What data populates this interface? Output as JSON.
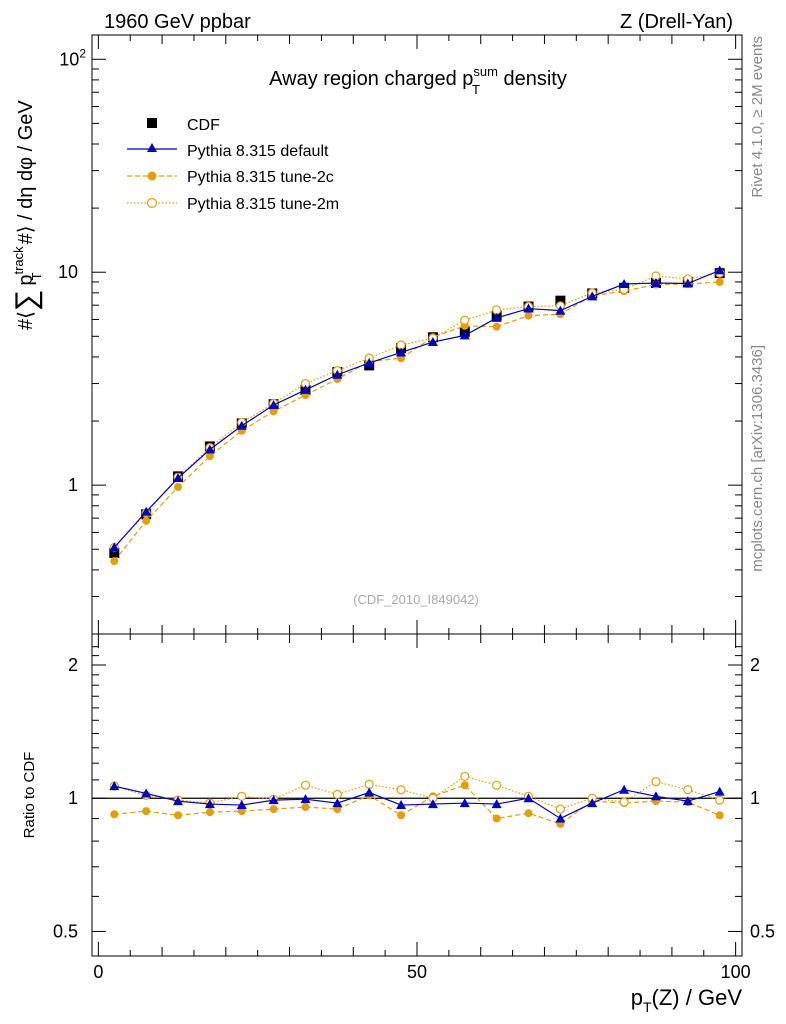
{
  "header": {
    "left": "1960 GeV ppbar",
    "right": "Z (Drell-Yan)"
  },
  "side": {
    "rivet": "Rivet 4.1.0, ≥ 2M events",
    "mcplots": "mcplots.cern.ch [arXiv:1306.3436]"
  },
  "colors": {
    "cdf": "#000000",
    "default": "#0000cc",
    "tune2c": "#e69f00",
    "tune2m": "#e69f00"
  },
  "chart_data": [
    {
      "type": "line",
      "title": "Away region charged p_T^sum density",
      "title_parts": {
        "pre": "Away region charged p",
        "sup": "sum",
        "sub": "T",
        "post": " density"
      },
      "ylabel": "#⟨ ∑ p_T^track #⟩ / dη dφ / GeV",
      "ylabel_parts": {
        "pre": "#⟨",
        "sum": "∑",
        "p": "p",
        "sup": "track",
        "sub": "T",
        "post": "#⟩ / dη dφ / GeV"
      },
      "yscale": "log",
      "ylim": [
        0.2,
        130
      ],
      "xlim": [
        -1,
        101
      ],
      "yticks": [
        {
          "value": 1,
          "label": "1"
        },
        {
          "value": 10,
          "label": "10"
        },
        {
          "value": 100,
          "label": "10",
          "exp": "2"
        }
      ],
      "watermark": "(CDF_2010_I849042)",
      "legend": [
        "CDF",
        "Pythia 8.315 default",
        "Pythia 8.315 tune-2c",
        "Pythia 8.315 tune-2m"
      ],
      "x": [
        2.5,
        7.5,
        12.5,
        17.5,
        22.5,
        27.5,
        32.5,
        37.5,
        42.5,
        47.5,
        52.5,
        57.5,
        62.5,
        67.5,
        72.5,
        77.5,
        82.5,
        87.5,
        92.5,
        97.5
      ],
      "series": [
        {
          "name": "CDF",
          "style": "square",
          "values": [
            0.48,
            0.73,
            1.1,
            1.52,
            1.95,
            2.4,
            2.8,
            3.4,
            3.65,
            4.4,
            4.95,
            5.25,
            6.25,
            6.9,
            7.35,
            7.95,
            8.45,
            8.9,
            9.0,
            9.9
          ]
        },
        {
          "name": "Pythia 8.315 default",
          "style": "line-triangle",
          "values": [
            0.51,
            0.75,
            1.08,
            1.47,
            1.9,
            2.38,
            2.8,
            3.3,
            3.75,
            4.2,
            4.7,
            5.05,
            6.1,
            6.75,
            6.6,
            7.7,
            8.8,
            8.9,
            8.85,
            10.2
          ]
        },
        {
          "name": "Pythia 8.315 tune-2c",
          "style": "dashed-dot",
          "values": [
            0.44,
            0.68,
            0.98,
            1.37,
            1.8,
            2.22,
            2.65,
            3.15,
            3.8,
            3.95,
            4.95,
            5.6,
            5.55,
            6.25,
            6.35,
            7.75,
            8.15,
            8.75,
            8.8,
            9.0
          ]
        },
        {
          "name": "Pythia 8.315 tune-2m",
          "style": "dotted-circle",
          "values": [
            0.51,
            0.74,
            1.09,
            1.5,
            1.97,
            2.42,
            3.0,
            3.45,
            3.95,
            4.55,
            4.9,
            5.95,
            6.65,
            6.9,
            6.95,
            8.0,
            8.3,
            9.6,
            9.3,
            9.9
          ]
        }
      ]
    },
    {
      "type": "line",
      "title": "",
      "ylabel": "Ratio to CDF",
      "xlabel": "p_T(Z) / GeV",
      "xlabel_parts": {
        "pre": "p",
        "sub": "T",
        "post": "(Z) / GeV"
      },
      "yscale": "log",
      "ylim": [
        0.44,
        2.35
      ],
      "xlim": [
        -1,
        101
      ],
      "xticks": [
        0,
        50,
        100
      ],
      "yticks": [
        {
          "value": 0.5,
          "label": "0.5"
        },
        {
          "value": 1,
          "label": "1"
        },
        {
          "value": 2,
          "label": "2"
        }
      ],
      "x": [
        2.5,
        7.5,
        12.5,
        17.5,
        22.5,
        27.5,
        32.5,
        37.5,
        42.5,
        47.5,
        52.5,
        57.5,
        62.5,
        67.5,
        72.5,
        77.5,
        82.5,
        87.5,
        92.5,
        97.5
      ],
      "series": [
        {
          "name": "Pythia 8.315 default",
          "style": "line-triangle",
          "values": [
            1.065,
            1.025,
            0.985,
            0.97,
            0.965,
            0.99,
            0.995,
            0.975,
            1.03,
            0.965,
            0.97,
            0.975,
            0.97,
            1.0,
            0.9,
            0.975,
            1.045,
            1.01,
            0.985,
            1.035
          ]
        },
        {
          "name": "Pythia 8.315 tune-2c",
          "style": "dashed-dot",
          "values": [
            0.92,
            0.935,
            0.915,
            0.93,
            0.935,
            0.945,
            0.955,
            0.945,
            1.015,
            0.915,
            1.01,
            1.07,
            0.9,
            0.925,
            0.875,
            0.985,
            0.975,
            0.985,
            0.98,
            0.915
          ]
        },
        {
          "name": "Pythia 8.315 tune-2m",
          "style": "dotted-circle",
          "values": [
            1.065,
            1.015,
            0.99,
            0.975,
            1.01,
            0.995,
            1.07,
            1.02,
            1.075,
            1.045,
            1.0,
            1.12,
            1.07,
            1.01,
            0.945,
            1.0,
            0.98,
            1.09,
            1.045,
            0.99
          ]
        }
      ]
    }
  ]
}
